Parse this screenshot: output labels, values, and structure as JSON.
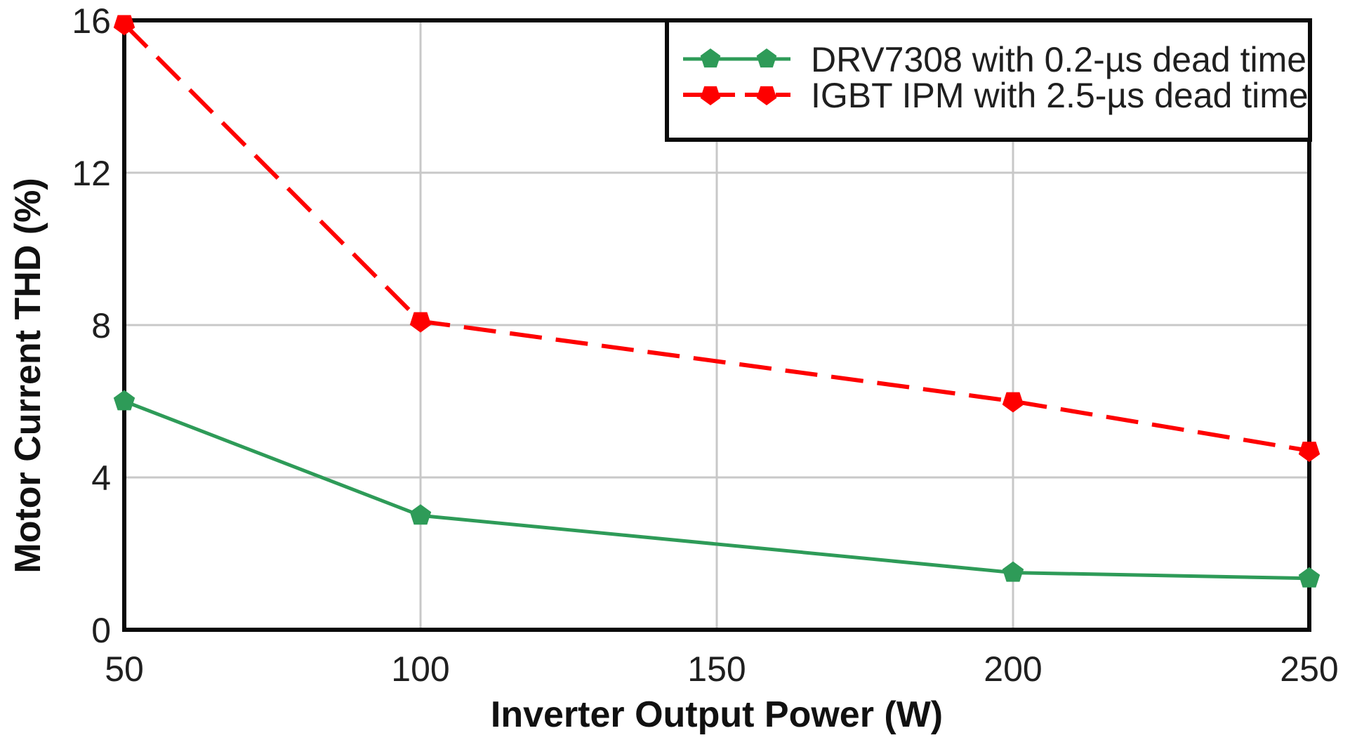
{
  "chart_data": {
    "type": "line",
    "title": "",
    "xlabel": "Inverter Output Power (W)",
    "ylabel": "Motor Current THD (%)",
    "xlim": [
      50,
      250
    ],
    "ylim": [
      0,
      16
    ],
    "xticks": [
      50,
      100,
      150,
      200,
      250
    ],
    "yticks": [
      0,
      4,
      8,
      12,
      16
    ],
    "grid": true,
    "legend_position": "top-right",
    "series": [
      {
        "name": "DRV7308 with 0.2-µs dead time",
        "color": "#2e9b58",
        "line_style": "solid",
        "marker": "pentagon-up",
        "x": [
          50,
          100,
          200,
          250
        ],
        "y": [
          6.0,
          3.0,
          1.5,
          1.35
        ]
      },
      {
        "name": "IGBT IPM with 2.5-µs dead time",
        "color": "#fe0000",
        "line_style": "dashed",
        "marker": "pentagon-down",
        "x": [
          50,
          100,
          200,
          250
        ],
        "y": [
          15.9,
          8.1,
          6.0,
          4.7
        ]
      }
    ]
  },
  "colors": {
    "background": "#ffffff",
    "grid": "#c8c8c8",
    "spine": "#0a0a0a",
    "legend_border": "#0a0a0a",
    "legend_background": "#ffffff"
  }
}
